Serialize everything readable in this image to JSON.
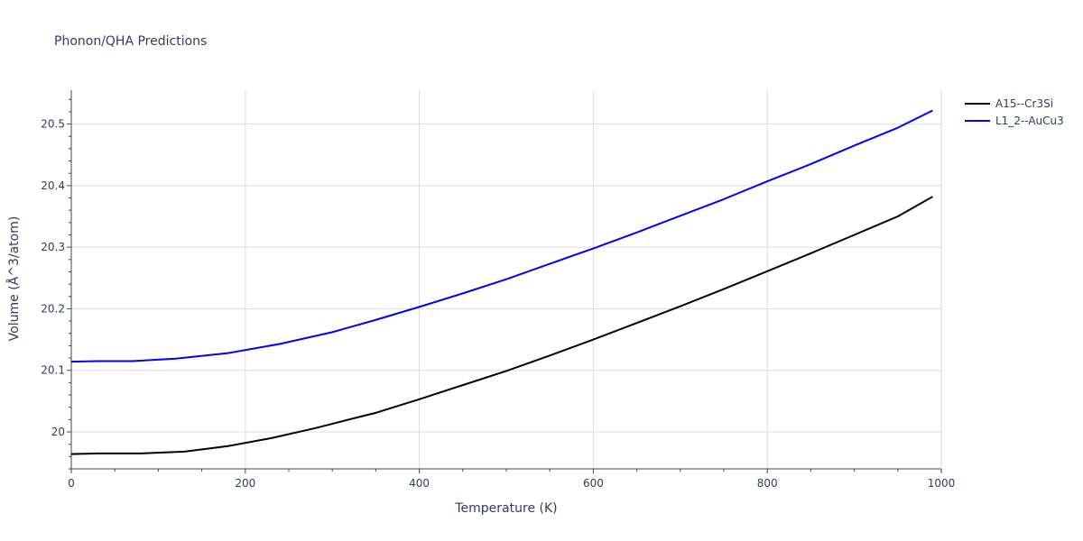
{
  "chart_data": {
    "type": "line",
    "title": "Phonon/QHA Predictions",
    "xlabel": "Temperature (K)",
    "ylabel": "Volume (Å^3/atom)",
    "xlim": [
      0,
      1000
    ],
    "ylim": [
      19.94,
      20.555
    ],
    "xticks": [
      0,
      200,
      400,
      600,
      800,
      1000
    ],
    "xtick_labels": [
      "0",
      "200",
      "400",
      "600",
      "800",
      "1000"
    ],
    "yticks": [
      20.0,
      20.1,
      20.2,
      20.3,
      20.4,
      20.5
    ],
    "ytick_labels": [
      "20",
      "20.1",
      "20.2",
      "20.3",
      "20.4",
      "20.5"
    ],
    "grid": true,
    "legend_position": "top-right",
    "series": [
      {
        "name": "A15--Cr3Si",
        "color": "#000000",
        "x": [
          0,
          30,
          80,
          130,
          180,
          230,
          280,
          330,
          350,
          400,
          450,
          500,
          550,
          600,
          650,
          700,
          750,
          800,
          850,
          900,
          950,
          990
        ],
        "y": [
          19.964,
          19.965,
          19.965,
          19.968,
          19.977,
          19.99,
          20.006,
          20.024,
          20.031,
          20.053,
          20.076,
          20.099,
          20.124,
          20.15,
          20.177,
          20.204,
          20.232,
          20.261,
          20.29,
          20.32,
          20.35,
          20.382
        ]
      },
      {
        "name": "L1_2--AuCu3",
        "color": "#0000ff",
        "x": [
          0,
          30,
          70,
          120,
          180,
          240,
          300,
          350,
          400,
          450,
          500,
          550,
          600,
          650,
          700,
          750,
          800,
          850,
          900,
          950,
          990
        ],
        "y": [
          20.114,
          20.115,
          20.115,
          20.119,
          20.128,
          20.143,
          20.162,
          20.182,
          20.203,
          20.225,
          20.248,
          20.273,
          20.298,
          20.324,
          20.351,
          20.378,
          20.407,
          20.435,
          20.465,
          20.494,
          20.522
        ]
      }
    ]
  }
}
